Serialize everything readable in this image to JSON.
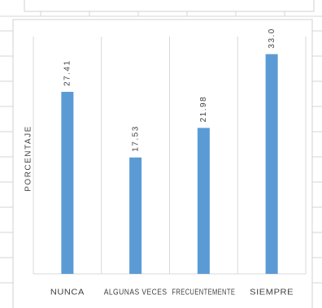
{
  "chart_data": {
    "type": "bar",
    "y_label": "PORCENTAJE",
    "categories": [
      "NUNCA",
      "ALGUNAS VECES",
      "FRECUENTEMENTE",
      "SIEMPRE"
    ],
    "values": [
      27.41,
      17.53,
      21.98,
      33.09
    ],
    "color": "#5b9bd5",
    "ylim": [
      0,
      35
    ]
  }
}
